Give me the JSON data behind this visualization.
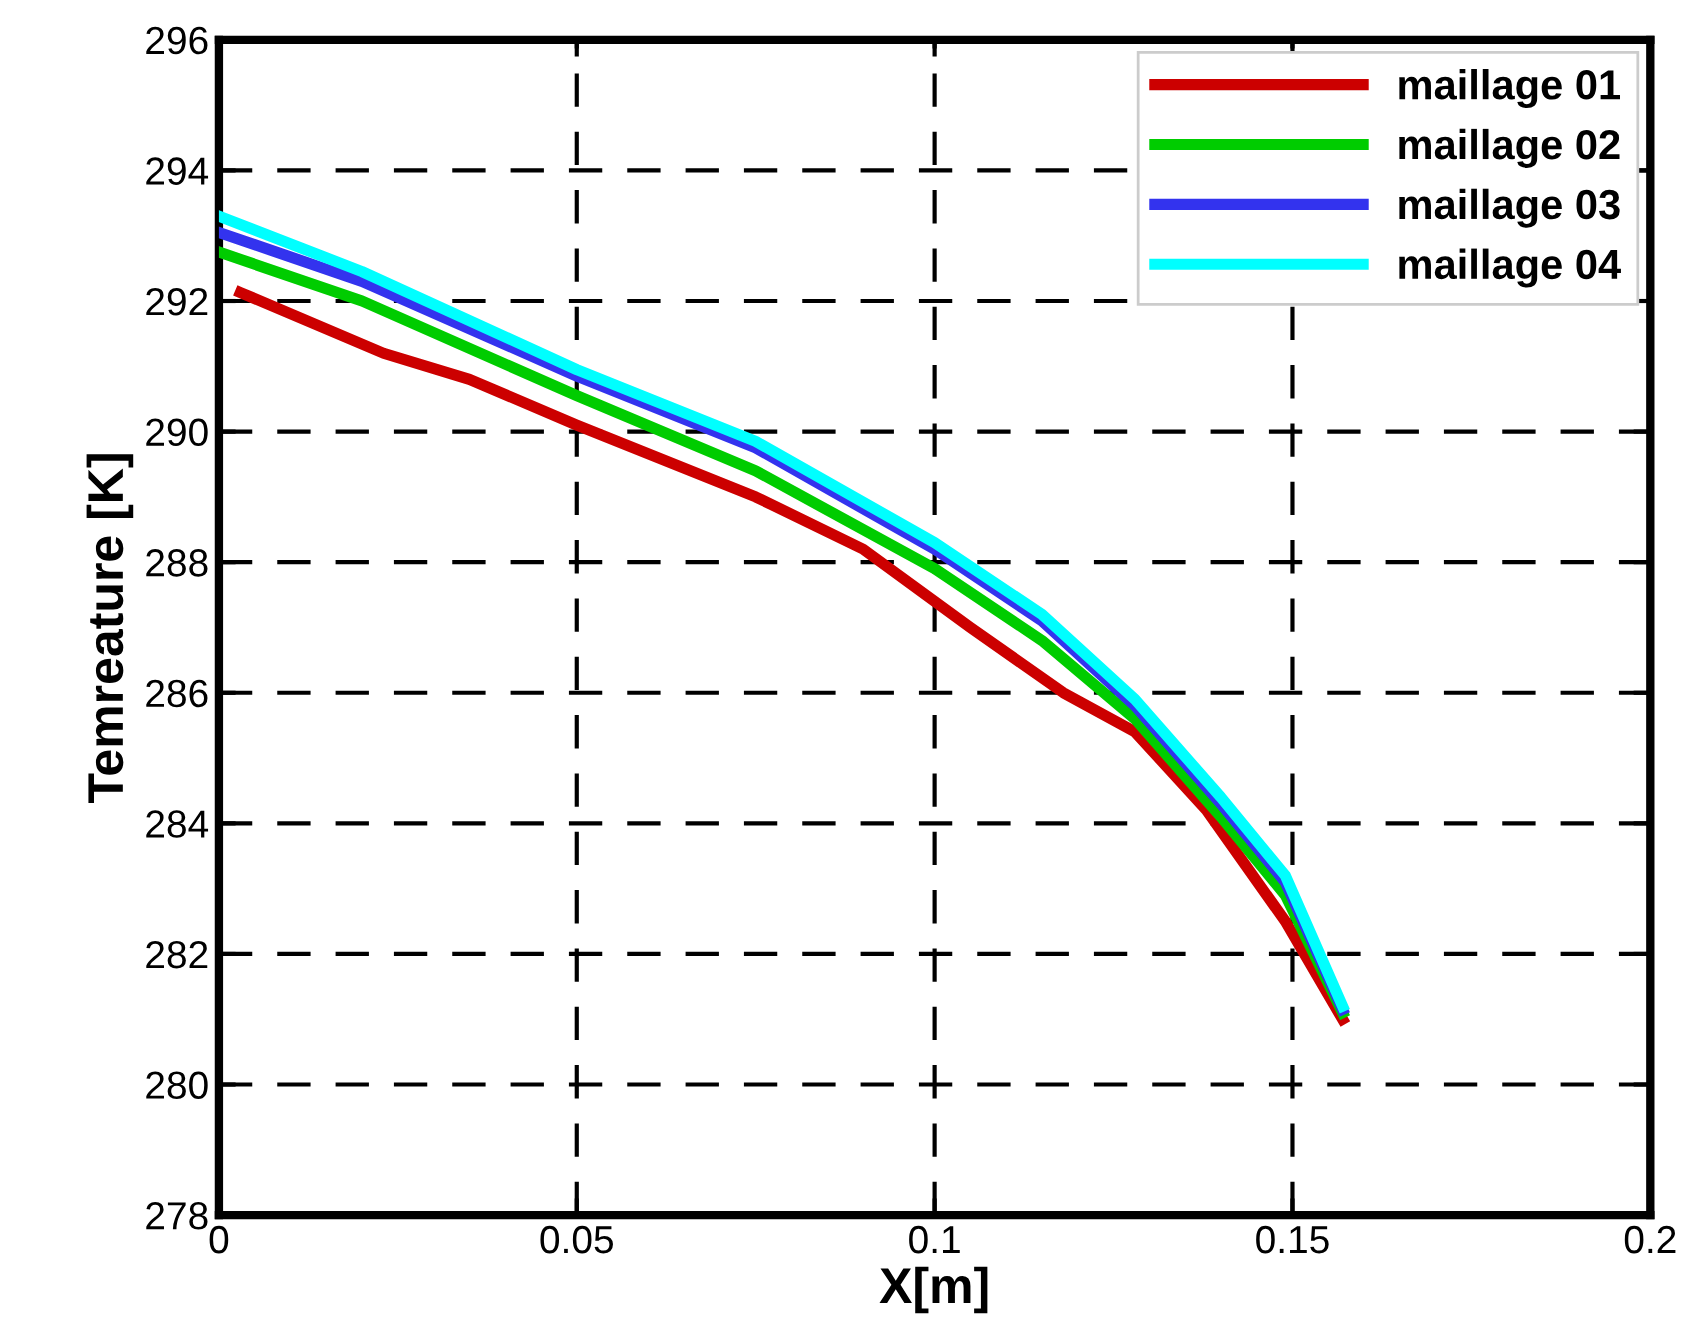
{
  "chart_data": {
    "type": "line",
    "xlabel": "X[m]",
    "ylabel": "Temreature [K]",
    "xlim": [
      0,
      0.2
    ],
    "xticks": [
      0,
      0.05,
      0.1,
      0.15,
      0.2
    ],
    "ylim": [
      278,
      296
    ],
    "yticks": [
      278,
      280,
      282,
      284,
      286,
      288,
      290,
      292,
      294,
      296
    ],
    "grid": true,
    "legend": "top right",
    "series": [
      {
        "name": "maillage 01",
        "color": "#cc0000",
        "x": [
          0.003,
          0.023,
          0.035,
          0.05,
          0.075,
          0.09,
          0.105,
          0.118,
          0.128,
          0.138,
          0.149,
          0.157
        ],
        "values": [
          292.13,
          291.2,
          290.8,
          290.1,
          289.0,
          288.2,
          287.0,
          286.0,
          285.4,
          284.2,
          282.5,
          281.0
        ]
      },
      {
        "name": "maillage 02",
        "color": "#00cc00",
        "x": [
          0,
          0.02,
          0.05,
          0.075,
          0.1,
          0.115,
          0.128,
          0.14,
          0.149,
          0.157
        ],
        "values": [
          292.75,
          292.0,
          290.55,
          289.4,
          287.9,
          286.8,
          285.6,
          284.1,
          282.9,
          281.1
        ]
      },
      {
        "name": "maillage 03",
        "color": "#3333ee",
        "x": [
          0,
          0.02,
          0.05,
          0.075,
          0.1,
          0.115,
          0.128,
          0.14,
          0.149,
          0.157
        ],
        "values": [
          293.05,
          292.3,
          290.85,
          289.75,
          288.2,
          287.1,
          285.8,
          284.3,
          283.1,
          281.15
        ]
      },
      {
        "name": "maillage 04",
        "color": "#00ffff",
        "x": [
          0,
          0.02,
          0.05,
          0.075,
          0.1,
          0.115,
          0.128,
          0.14,
          0.149,
          0.157
        ],
        "values": [
          293.3,
          292.45,
          290.95,
          289.85,
          288.3,
          287.2,
          285.9,
          284.4,
          283.2,
          281.2
        ]
      }
    ]
  }
}
